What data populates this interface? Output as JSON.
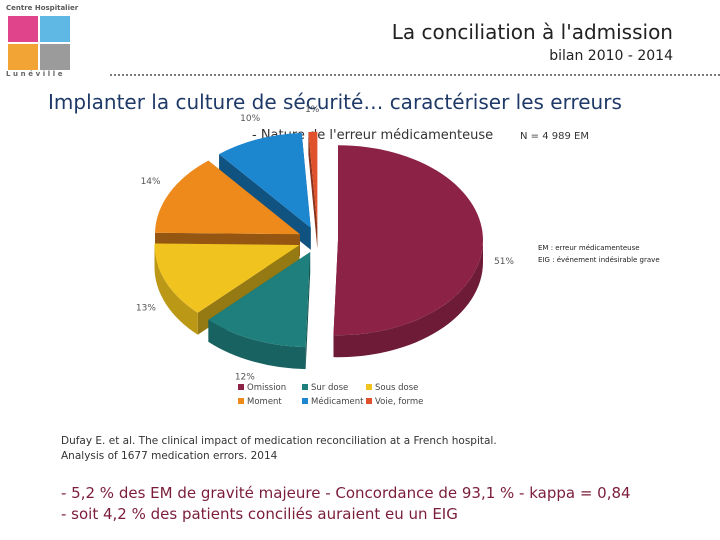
{
  "header": {
    "logo_top_text": "Centre Hospitalier",
    "logo_bottom_text": "Lunéville",
    "logo_colors": [
      "#e0458c",
      "#5fb7e4",
      "#f2a534",
      "#9b9b9b"
    ],
    "title": "La conciliation à l'admission",
    "subtitle": "bilan 2010 - 2014"
  },
  "heading": "Implanter la culture de sécurité… caractériser les erreurs",
  "chart_data": {
    "type": "pie",
    "title": "- Nature de l'erreur médicamenteuse",
    "n_label": "N = 4 989 EM",
    "categories": [
      "Omission",
      "Sur dose",
      "Sous dose",
      "Moment",
      "Médicament",
      "Voie, forme"
    ],
    "values": [
      51,
      12,
      13,
      14,
      10,
      1
    ],
    "value_labels": [
      "51%",
      "12%",
      "13%",
      "14%",
      "10%",
      "1%"
    ],
    "colors": [
      "#8c2347",
      "#1f7f7c",
      "#f1c31e",
      "#ee8a1c",
      "#1c86cf",
      "#e0522b"
    ],
    "exploded": true,
    "legend_position": "bottom"
  },
  "definitions": [
    "EM : erreur médicamenteuse",
    "EIG : événement indésirable grave"
  ],
  "reference": [
    "Dufay E. et al. The clinical impact of medication reconciliation at a French hospital.",
    "Analysis of 1677 medication errors. 2014"
  ],
  "conclusions": [
    "- 5,2 % des EM de gravité majeure - Concordance de 93,1 % - kappa = 0,84",
    "- soit 4,2 % des patients conciliés auraient eu un EIG"
  ]
}
